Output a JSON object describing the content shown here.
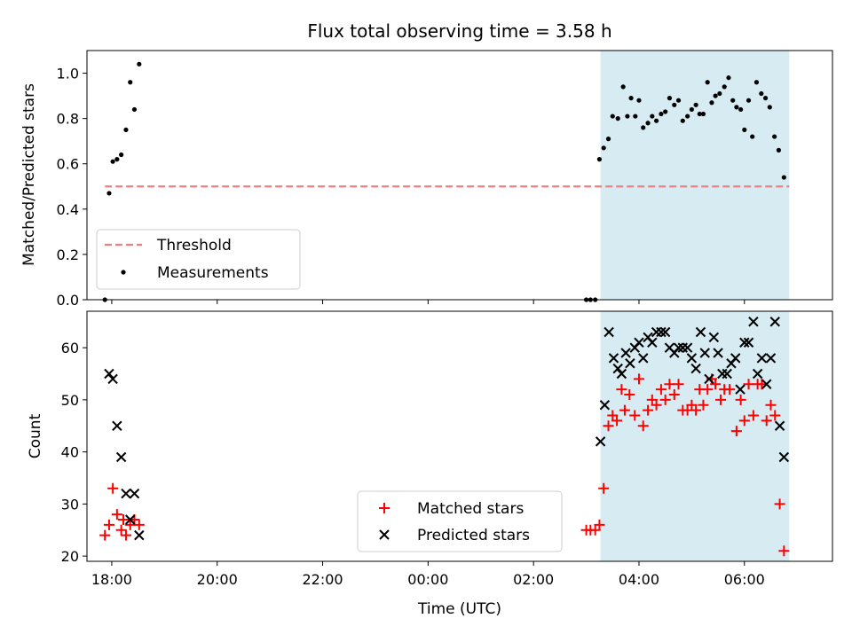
{
  "figure": {
    "title": "Flux total observing time = 3.58 h",
    "x_axis_label": "Time (UTC)",
    "x_ticks": [
      {
        "t": 0,
        "label": "18:00"
      },
      {
        "t": 2,
        "label": "20:00"
      },
      {
        "t": 4,
        "label": "22:00"
      },
      {
        "t": 6,
        "label": "00:00"
      },
      {
        "t": 8,
        "label": "02:00"
      },
      {
        "t": 10,
        "label": "04:00"
      },
      {
        "t": 12,
        "label": "06:00"
      }
    ],
    "x_range_hours_since_1800": [
      -0.47,
      13.67
    ],
    "observing_window_hours_since_1800": [
      9.27,
      12.85
    ],
    "window_color": "#add8e6"
  },
  "chart_data": [
    {
      "type": "scatter",
      "panel": "top",
      "ylabel": "Matched/Predicted stars",
      "ylim": [
        0,
        1.1
      ],
      "yticks": [
        "0.0",
        "0.2",
        "0.4",
        "0.6",
        "0.8",
        "1.0"
      ],
      "ytick_values": [
        0,
        0.2,
        0.4,
        0.6,
        0.8,
        1.0
      ],
      "legend": {
        "placement": "lower-left",
        "threshold_label": "Threshold",
        "measurements_label": "Measurements"
      },
      "threshold": {
        "name": "Threshold",
        "value": 0.5,
        "x_range": [
          -0.13,
          12.85
        ],
        "color": "#f08080",
        "style": "dashed"
      },
      "series": [
        {
          "name": "Measurements",
          "color": "#000000",
          "points": [
            [
              -0.13,
              0.0
            ],
            [
              -0.05,
              0.47
            ],
            [
              0.02,
              0.61
            ],
            [
              0.1,
              0.62
            ],
            [
              0.18,
              0.64
            ],
            [
              0.27,
              0.75
            ],
            [
              0.35,
              0.96
            ],
            [
              0.43,
              0.84
            ],
            [
              0.52,
              1.04
            ],
            [
              9.0,
              0.0
            ],
            [
              9.08,
              0.0
            ],
            [
              9.17,
              0.0
            ],
            [
              9.25,
              0.62
            ],
            [
              9.33,
              0.67
            ],
            [
              9.42,
              0.71
            ],
            [
              9.5,
              0.81
            ],
            [
              9.6,
              0.8
            ],
            [
              9.7,
              0.94
            ],
            [
              9.78,
              0.81
            ],
            [
              9.85,
              0.89
            ],
            [
              9.93,
              0.81
            ],
            [
              10.0,
              0.88
            ],
            [
              10.08,
              0.76
            ],
            [
              10.17,
              0.78
            ],
            [
              10.25,
              0.81
            ],
            [
              10.33,
              0.79
            ],
            [
              10.42,
              0.82
            ],
            [
              10.5,
              0.83
            ],
            [
              10.58,
              0.89
            ],
            [
              10.67,
              0.86
            ],
            [
              10.75,
              0.88
            ],
            [
              10.83,
              0.79
            ],
            [
              10.92,
              0.81
            ],
            [
              11.0,
              0.84
            ],
            [
              11.08,
              0.86
            ],
            [
              11.15,
              0.82
            ],
            [
              11.22,
              0.82
            ],
            [
              11.3,
              0.96
            ],
            [
              11.38,
              0.87
            ],
            [
              11.45,
              0.9
            ],
            [
              11.53,
              0.91
            ],
            [
              11.62,
              0.94
            ],
            [
              11.7,
              0.98
            ],
            [
              11.78,
              0.88
            ],
            [
              11.85,
              0.85
            ],
            [
              11.93,
              0.84
            ],
            [
              12.0,
              0.75
            ],
            [
              12.08,
              0.88
            ],
            [
              12.15,
              0.72
            ],
            [
              12.23,
              0.96
            ],
            [
              12.32,
              0.91
            ],
            [
              12.4,
              0.89
            ],
            [
              12.48,
              0.85
            ],
            [
              12.57,
              0.72
            ],
            [
              12.65,
              0.66
            ],
            [
              12.75,
              0.54
            ]
          ]
        }
      ]
    },
    {
      "type": "scatter",
      "panel": "bottom",
      "ylabel": "Count",
      "ylim": [
        19,
        67
      ],
      "yticks": [
        "20",
        "30",
        "40",
        "50",
        "60"
      ],
      "ytick_values": [
        20,
        30,
        40,
        50,
        60
      ],
      "legend": {
        "placement": "lower-center",
        "matched_label": "Matched stars",
        "predicted_label": "Predicted stars"
      },
      "series": [
        {
          "name": "Matched stars",
          "marker": "plus",
          "color": "#ff0000",
          "points": [
            [
              -0.13,
              24
            ],
            [
              -0.05,
              26
            ],
            [
              0.02,
              33
            ],
            [
              0.1,
              28
            ],
            [
              0.18,
              25
            ],
            [
              0.22,
              27
            ],
            [
              0.27,
              24
            ],
            [
              0.35,
              26
            ],
            [
              0.43,
              27
            ],
            [
              0.52,
              26
            ],
            [
              9.0,
              25
            ],
            [
              9.08,
              25
            ],
            [
              9.17,
              25
            ],
            [
              9.25,
              26
            ],
            [
              9.33,
              33
            ],
            [
              9.42,
              45
            ],
            [
              9.5,
              47
            ],
            [
              9.58,
              46
            ],
            [
              9.67,
              52
            ],
            [
              9.73,
              48
            ],
            [
              9.82,
              51
            ],
            [
              9.92,
              47
            ],
            [
              10.0,
              54
            ],
            [
              10.08,
              45
            ],
            [
              10.17,
              48
            ],
            [
              10.25,
              50
            ],
            [
              10.33,
              49
            ],
            [
              10.42,
              52
            ],
            [
              10.5,
              50
            ],
            [
              10.58,
              53
            ],
            [
              10.67,
              51
            ],
            [
              10.75,
              53
            ],
            [
              10.83,
              48
            ],
            [
              10.92,
              48
            ],
            [
              11.0,
              49
            ],
            [
              11.08,
              48
            ],
            [
              11.15,
              52
            ],
            [
              11.22,
              49
            ],
            [
              11.3,
              52
            ],
            [
              11.38,
              54
            ],
            [
              11.45,
              53
            ],
            [
              11.55,
              50
            ],
            [
              11.62,
              52
            ],
            [
              11.72,
              52
            ],
            [
              11.85,
              44
            ],
            [
              11.93,
              50
            ],
            [
              12.0,
              46
            ],
            [
              12.08,
              53
            ],
            [
              12.17,
              47
            ],
            [
              12.25,
              53
            ],
            [
              12.33,
              53
            ],
            [
              12.42,
              46
            ],
            [
              12.5,
              49
            ],
            [
              12.58,
              47
            ],
            [
              12.67,
              30
            ],
            [
              12.75,
              21
            ]
          ]
        },
        {
          "name": "Predicted stars",
          "marker": "x",
          "color": "#000000",
          "points": [
            [
              -0.05,
              55
            ],
            [
              0.02,
              54
            ],
            [
              0.1,
              45
            ],
            [
              0.18,
              39
            ],
            [
              0.27,
              32
            ],
            [
              0.35,
              27
            ],
            [
              0.43,
              32
            ],
            [
              0.52,
              24
            ],
            [
              9.27,
              42
            ],
            [
              9.35,
              49
            ],
            [
              9.43,
              63
            ],
            [
              9.52,
              58
            ],
            [
              9.6,
              56
            ],
            [
              9.67,
              55
            ],
            [
              9.75,
              59
            ],
            [
              9.83,
              57
            ],
            [
              9.92,
              60
            ],
            [
              10.0,
              61
            ],
            [
              10.08,
              58
            ],
            [
              10.17,
              62
            ],
            [
              10.25,
              61
            ],
            [
              10.33,
              63
            ],
            [
              10.42,
              63
            ],
            [
              10.5,
              63
            ],
            [
              10.58,
              60
            ],
            [
              10.67,
              59
            ],
            [
              10.75,
              60
            ],
            [
              10.83,
              60
            ],
            [
              10.92,
              60
            ],
            [
              11.0,
              58
            ],
            [
              11.08,
              56
            ],
            [
              11.17,
              63
            ],
            [
              11.25,
              59
            ],
            [
              11.33,
              54
            ],
            [
              11.42,
              62
            ],
            [
              11.5,
              59
            ],
            [
              11.58,
              55
            ],
            [
              11.67,
              55
            ],
            [
              11.75,
              57
            ],
            [
              11.83,
              58
            ],
            [
              11.92,
              52
            ],
            [
              12.0,
              61
            ],
            [
              12.08,
              61
            ],
            [
              12.17,
              65
            ],
            [
              12.25,
              55
            ],
            [
              12.33,
              58
            ],
            [
              12.42,
              53
            ],
            [
              12.5,
              58
            ],
            [
              12.58,
              65
            ],
            [
              12.67,
              45
            ],
            [
              12.75,
              39
            ]
          ]
        }
      ]
    }
  ]
}
